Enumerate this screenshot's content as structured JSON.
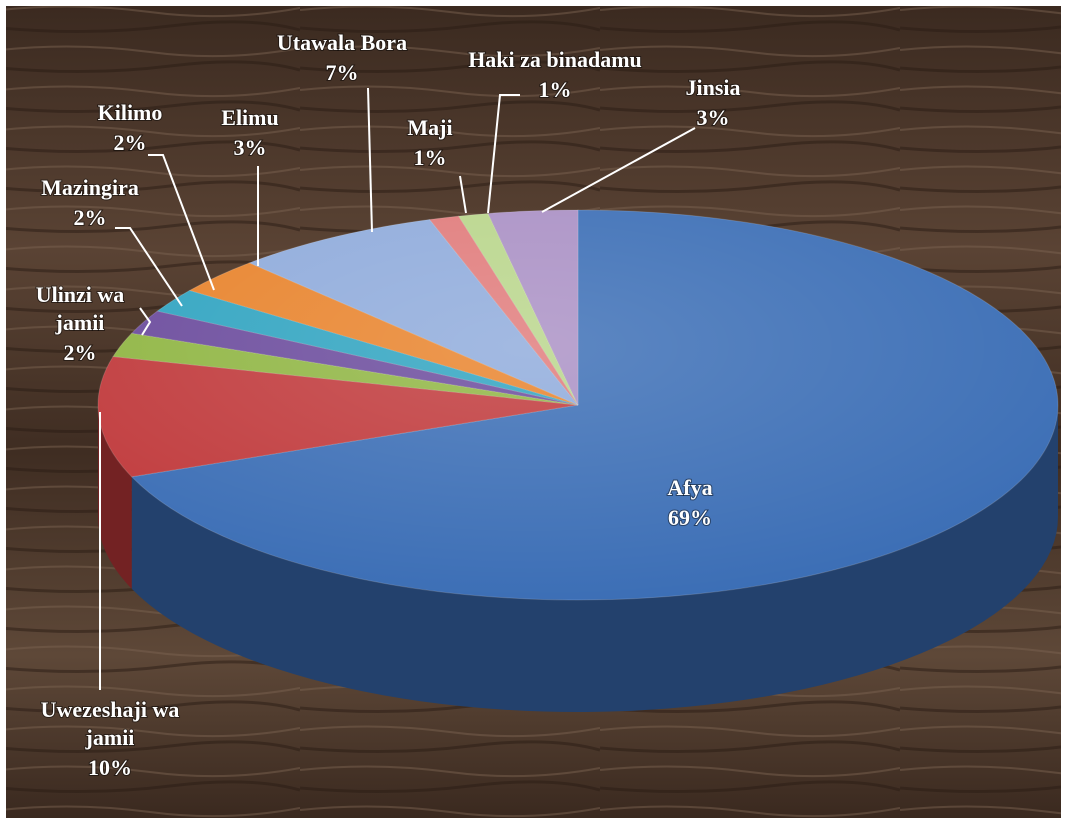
{
  "chart_data": {
    "type": "pie",
    "categories": [
      "Afya",
      "Uwezeshaji wa jamii",
      "Ulinzi wa jamii",
      "Mazingira",
      "Kilimo",
      "Elimu",
      "Utawala Bora",
      "Maji",
      "Haki za binadamu",
      "Jinsia"
    ],
    "values": [
      69,
      10,
      2,
      2,
      2,
      3,
      7,
      1,
      1,
      3
    ],
    "value_labels": [
      "69%",
      "10%",
      "2%",
      "2%",
      "2%",
      "3%",
      "7%",
      "1%",
      "1%",
      "3%"
    ],
    "colors": [
      "#3a6db5",
      "#c0393b",
      "#8fb542",
      "#6a4a9c",
      "#2ea3c0",
      "#e8822a",
      "#8eaadb",
      "#e07a7a",
      "#b8d58a",
      "#a98fc4"
    ]
  }
}
